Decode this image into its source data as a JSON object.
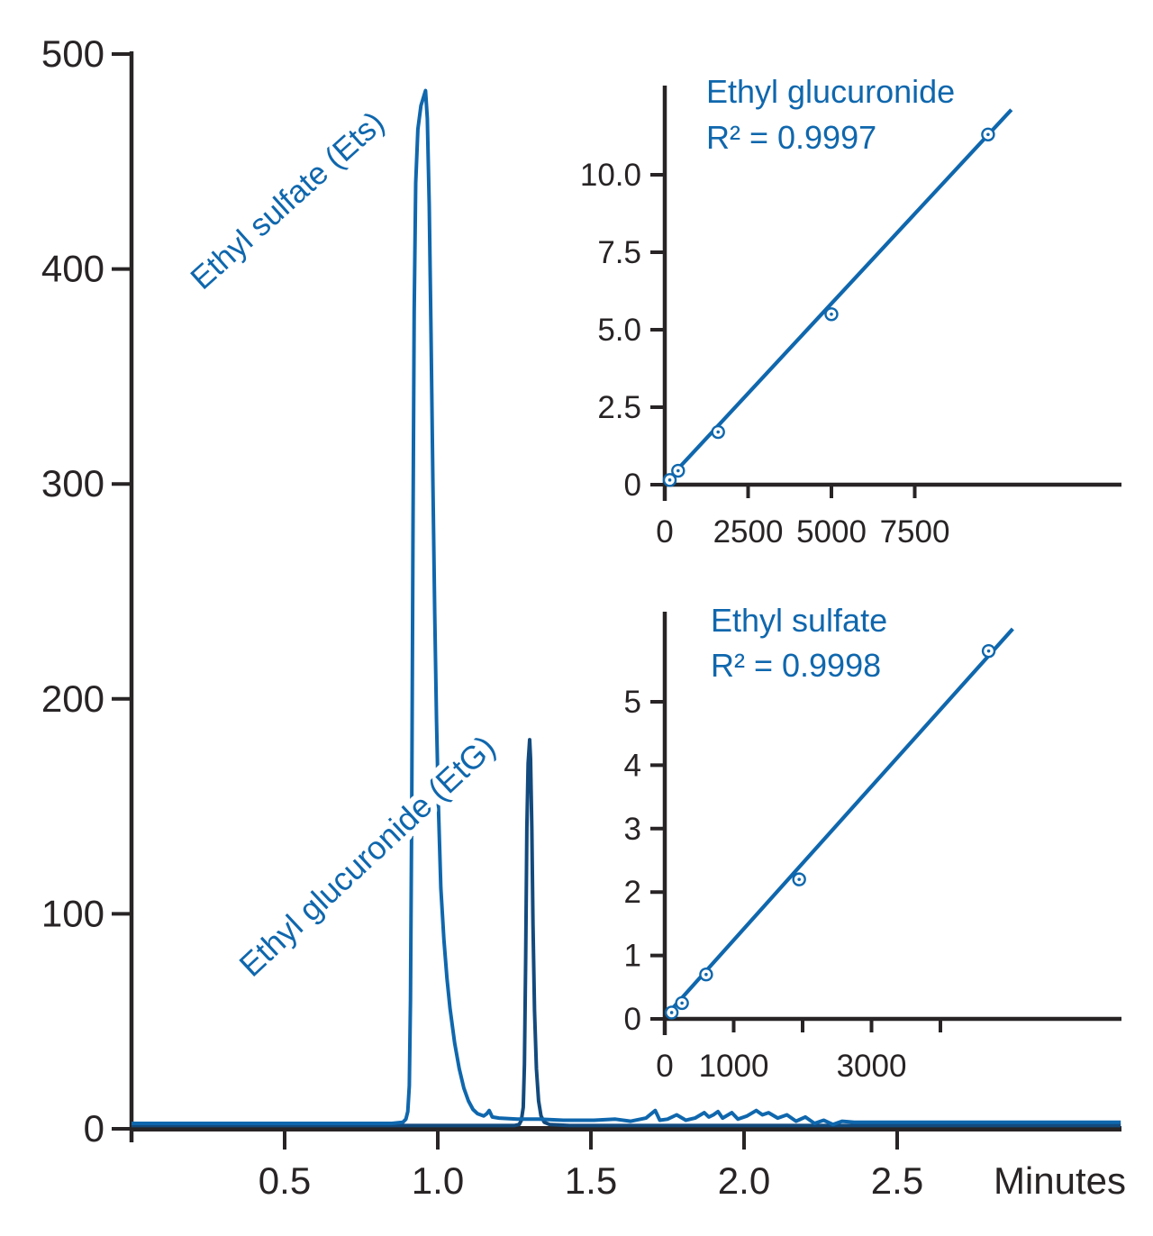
{
  "figure": {
    "background": "#ffffff",
    "accent_blue": "#0f67ad",
    "trace_navy": "#134a7d",
    "axis_color": "#282425"
  },
  "chart_data": [
    {
      "type": "line",
      "id": "chromatogram",
      "xlabel": "Minutes",
      "x_ticks": [
        0.5,
        1.0,
        1.5,
        2.0,
        2.5
      ],
      "x_tick_labels": [
        "0.5",
        "1.0",
        "1.5",
        "2.0",
        "2.5"
      ],
      "ylim": [
        0,
        500
      ],
      "y_ticks": [
        0,
        100,
        200,
        300,
        400,
        500
      ],
      "y_tick_labels": [
        "0",
        "100",
        "200",
        "300",
        "400",
        "500"
      ],
      "grid": false,
      "series": [
        {
          "name": "Ethyl sulfate (Ets)",
          "color_key": "accent_blue",
          "retention_time_min": 0.96,
          "peak_height": 483,
          "points": [
            [
              0,
              2.5
            ],
            [
              0.4,
              2.5
            ],
            [
              0.7,
              2.5
            ],
            [
              0.85,
              2.5
            ],
            [
              0.886,
              3
            ],
            [
              0.896,
              4.5
            ],
            [
              0.902,
              8
            ],
            [
              0.907,
              20
            ],
            [
              0.911,
              60
            ],
            [
              0.915,
              150
            ],
            [
              0.919,
              280
            ],
            [
              0.923,
              380
            ],
            [
              0.928,
              440
            ],
            [
              0.935,
              465
            ],
            [
              0.945,
              476
            ],
            [
              0.96,
              483
            ],
            [
              0.966,
              470
            ],
            [
              0.972,
              430
            ],
            [
              0.978,
              370
            ],
            [
              0.984,
              300
            ],
            [
              0.99,
              240
            ],
            [
              0.996,
              190
            ],
            [
              1.002,
              150
            ],
            [
              1.01,
              112
            ],
            [
              1.02,
              88
            ],
            [
              1.03,
              70
            ],
            [
              1.04,
              56
            ],
            [
              1.055,
              40
            ],
            [
              1.07,
              28
            ],
            [
              1.085,
              19
            ],
            [
              1.1,
              13
            ],
            [
              1.115,
              9
            ],
            [
              1.13,
              7
            ],
            [
              1.15,
              6
            ],
            [
              1.16,
              7
            ],
            [
              1.168,
              8.5
            ],
            [
              1.178,
              5.5
            ],
            [
              1.2,
              5
            ],
            [
              1.26,
              4.5
            ],
            [
              1.33,
              4.5
            ],
            [
              1.41,
              4
            ],
            [
              1.51,
              4
            ],
            [
              1.58,
              4.5
            ],
            [
              1.63,
              3.5
            ],
            [
              1.68,
              5
            ],
            [
              1.71,
              8.5
            ],
            [
              1.725,
              4
            ],
            [
              1.75,
              4.5
            ],
            [
              1.78,
              6.5
            ],
            [
              1.81,
              4
            ],
            [
              1.84,
              5
            ],
            [
              1.87,
              7.5
            ],
            [
              1.885,
              5.5
            ],
            [
              1.9,
              6.5
            ],
            [
              1.915,
              8
            ],
            [
              1.93,
              5
            ],
            [
              1.96,
              7.5
            ],
            [
              1.98,
              4.5
            ],
            [
              2.01,
              6
            ],
            [
              2.04,
              8.5
            ],
            [
              2.06,
              6.5
            ],
            [
              2.08,
              7.5
            ],
            [
              2.11,
              5
            ],
            [
              2.14,
              6.5
            ],
            [
              2.17,
              3.5
            ],
            [
              2.2,
              5.5
            ],
            [
              2.23,
              2.5
            ],
            [
              2.26,
              4
            ],
            [
              2.29,
              2
            ],
            [
              2.32,
              3.5
            ],
            [
              2.36,
              3
            ],
            [
              2.7,
              3
            ],
            [
              3.23,
              3
            ]
          ]
        },
        {
          "name": "Ethyl glucuronide (EtG)",
          "color_key": "trace_navy",
          "retention_time_min": 1.3,
          "peak_height": 181,
          "points": [
            [
              0,
              1.5
            ],
            [
              0.6,
              1.5
            ],
            [
              1.0,
              1.5
            ],
            [
              1.25,
              1.5
            ],
            [
              1.266,
              2
            ],
            [
              1.273,
              4
            ],
            [
              1.279,
              10
            ],
            [
              1.283,
              30
            ],
            [
              1.287,
              80
            ],
            [
              1.291,
              140
            ],
            [
              1.295,
              170
            ],
            [
              1.3,
              181
            ],
            [
              1.303,
              172
            ],
            [
              1.307,
              140
            ],
            [
              1.311,
              95
            ],
            [
              1.316,
              55
            ],
            [
              1.322,
              28
            ],
            [
              1.329,
              13
            ],
            [
              1.337,
              6
            ],
            [
              1.348,
              3
            ],
            [
              1.365,
              2
            ],
            [
              1.43,
              1.5
            ],
            [
              2.0,
              1.5
            ],
            [
              3.23,
              1.5
            ]
          ]
        }
      ]
    },
    {
      "type": "scatter",
      "id": "etg_calibration",
      "title": "Ethyl glucuronide",
      "annotation": "R² = 0.9997",
      "x": [
        150,
        400,
        1600,
        5000,
        9700
      ],
      "y": [
        0.15,
        0.45,
        1.7,
        5.5,
        11.3
      ],
      "fit_line": {
        "x": [
          0,
          10400
        ],
        "y": [
          0.05,
          12.1
        ]
      },
      "xlim": [
        0,
        13700
      ],
      "ylim": [
        0,
        12.9
      ],
      "x_ticks": [
        2500,
        5000,
        7500
      ],
      "x_tick_labels": [
        "0",
        "2500",
        "5000",
        "7500"
      ],
      "x_tick_label_values": [
        0,
        2500,
        5000,
        7500
      ],
      "y_ticks": [
        0,
        2.5,
        5.0,
        7.5,
        10.0
      ],
      "y_tick_labels": [
        "0",
        "2.5",
        "5.0",
        "7.5",
        "10.0"
      ],
      "grid": false,
      "legend": "none"
    },
    {
      "type": "scatter",
      "id": "ets_calibration",
      "title": "Ethyl sulfate",
      "annotation": "R² = 0.9998",
      "x": [
        100,
        250,
        600,
        1950,
        4700
      ],
      "y": [
        0.1,
        0.25,
        0.7,
        2.2,
        5.8
      ],
      "fit_line": {
        "x": [
          0,
          5050
        ],
        "y": [
          0.03,
          6.15
        ]
      },
      "xlim": [
        0,
        6630
      ],
      "ylim": [
        0,
        6.4
      ],
      "x_ticks": [
        1000,
        2000,
        3000,
        4000
      ],
      "x_tick_labels": [
        "0",
        "1000",
        "3000"
      ],
      "x_tick_label_values": [
        0,
        1000,
        3000
      ],
      "y_ticks": [
        0,
        1,
        2,
        3,
        4,
        5
      ],
      "y_tick_labels": [
        "0",
        "1",
        "2",
        "3",
        "4",
        "5"
      ],
      "grid": false,
      "legend": "none"
    }
  ]
}
